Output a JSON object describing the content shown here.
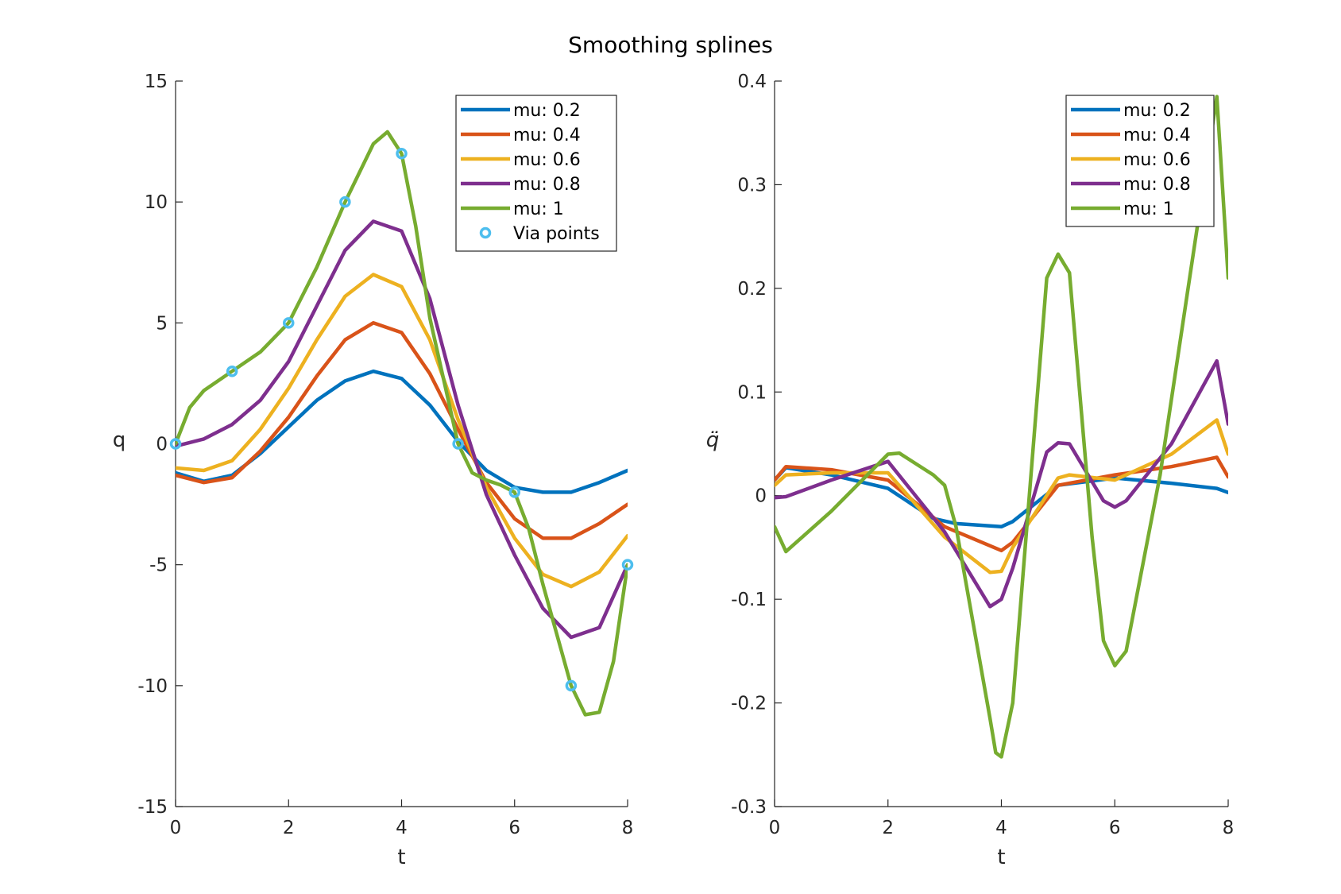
{
  "figure_title": "Smoothing splines",
  "chart_data": [
    {
      "type": "line",
      "xlabel": "t",
      "ylabel": "q",
      "xlim": [
        0,
        8
      ],
      "ylim": [
        -15,
        15
      ],
      "xticks": [
        0,
        2,
        4,
        6,
        8
      ],
      "yticks": [
        -15,
        -10,
        -5,
        0,
        5,
        10,
        15
      ],
      "legend_position": "top-right",
      "series": [
        {
          "name": "mu:  0.2",
          "color": "#0072BD",
          "x": [
            0,
            0.5,
            1,
            1.5,
            2,
            2.5,
            3,
            3.5,
            4,
            4.5,
            5,
            5.5,
            6,
            6.5,
            7,
            7.5,
            8
          ],
          "y": [
            -1.2,
            -1.55,
            -1.3,
            -0.4,
            0.7,
            1.8,
            2.6,
            3.0,
            2.7,
            1.6,
            0.1,
            -1.1,
            -1.8,
            -2.0,
            -2.0,
            -1.6,
            -1.1
          ]
        },
        {
          "name": "mu:  0.4",
          "color": "#D95319",
          "x": [
            0,
            0.5,
            1,
            1.5,
            2,
            2.5,
            3,
            3.5,
            4,
            4.5,
            5,
            5.5,
            6,
            6.5,
            7,
            7.5,
            8
          ],
          "y": [
            -1.3,
            -1.6,
            -1.4,
            -0.3,
            1.1,
            2.8,
            4.3,
            5.0,
            4.6,
            2.9,
            0.6,
            -1.6,
            -3.1,
            -3.9,
            -3.9,
            -3.3,
            -2.5
          ]
        },
        {
          "name": "mu:  0.6",
          "color": "#EDB120",
          "x": [
            0,
            0.5,
            1,
            1.5,
            2,
            2.5,
            3,
            3.5,
            4,
            4.5,
            5,
            5.5,
            6,
            6.5,
            7,
            7.5,
            8
          ],
          "y": [
            -1.0,
            -1.1,
            -0.7,
            0.6,
            2.3,
            4.3,
            6.1,
            7.0,
            6.5,
            4.3,
            1.0,
            -1.8,
            -3.9,
            -5.4,
            -5.9,
            -5.3,
            -3.8
          ]
        },
        {
          "name": "mu:  0.8",
          "color": "#7E2F8E",
          "x": [
            0,
            0.5,
            1,
            1.5,
            2,
            2.5,
            3,
            3.5,
            4,
            4.5,
            5,
            5.5,
            6,
            6.5,
            7,
            7.5,
            8
          ],
          "y": [
            -0.1,
            0.2,
            0.8,
            1.8,
            3.4,
            5.7,
            8.0,
            9.2,
            8.8,
            6.0,
            1.6,
            -2.1,
            -4.6,
            -6.8,
            -8.0,
            -7.6,
            -5.0
          ]
        },
        {
          "name": "mu:  1",
          "color": "#77AC30",
          "x": [
            0,
            0.25,
            0.5,
            1,
            1.5,
            2,
            2.5,
            3,
            3.5,
            3.75,
            4,
            4.25,
            4.5,
            5,
            5.25,
            5.5,
            5.75,
            6,
            6.25,
            6.5,
            7,
            7.25,
            7.5,
            7.75,
            8
          ],
          "y": [
            0,
            1.5,
            2.2,
            3.0,
            3.8,
            5.0,
            7.3,
            10.0,
            12.4,
            12.9,
            12.0,
            9.0,
            5.2,
            0.0,
            -1.2,
            -1.5,
            -1.7,
            -2.0,
            -3.5,
            -5.8,
            -10.0,
            -11.2,
            -11.1,
            -9.0,
            -5.0
          ]
        }
      ],
      "markers": {
        "name": "Via points",
        "color": "#4DBEEE",
        "x": [
          0,
          1,
          2,
          3,
          4,
          5,
          6,
          7,
          8
        ],
        "y": [
          0,
          3,
          5,
          10,
          12,
          0,
          -2,
          -10,
          -5
        ]
      }
    },
    {
      "type": "line",
      "xlabel": "t",
      "ylabel": "q̈",
      "xlim": [
        0,
        8
      ],
      "ylim": [
        -0.3,
        0.4
      ],
      "xticks": [
        0,
        2,
        4,
        6,
        8
      ],
      "yticks": [
        -0.3,
        -0.2,
        -0.1,
        0,
        0.1,
        0.2,
        0.3,
        0.4
      ],
      "legend_position": "top-right",
      "series": [
        {
          "name": "mu:  0.2",
          "color": "#0072BD",
          "x": [
            0,
            0.2,
            1,
            2,
            2.8,
            3.2,
            4,
            4.2,
            5,
            6,
            7,
            7.8,
            8
          ],
          "y": [
            0.015,
            0.027,
            0.02,
            0.007,
            -0.022,
            -0.027,
            -0.03,
            -0.025,
            0.01,
            0.017,
            0.012,
            0.007,
            0.003
          ]
        },
        {
          "name": "mu:  0.4",
          "color": "#D95319",
          "x": [
            0,
            0.2,
            1,
            2,
            3,
            4,
            4.2,
            5,
            6,
            7,
            7.8,
            8
          ],
          "y": [
            0.015,
            0.028,
            0.025,
            0.015,
            -0.03,
            -0.053,
            -0.045,
            0.01,
            0.02,
            0.028,
            0.037,
            0.018
          ]
        },
        {
          "name": "mu:  0.6",
          "color": "#EDB120",
          "x": [
            0,
            0.2,
            1,
            2,
            3,
            3.8,
            4,
            4.2,
            5,
            5.2,
            6,
            7,
            7.8,
            8
          ],
          "y": [
            0.01,
            0.02,
            0.022,
            0.022,
            -0.04,
            -0.074,
            -0.073,
            -0.05,
            0.017,
            0.02,
            0.015,
            0.04,
            0.073,
            0.04
          ]
        },
        {
          "name": "mu:  0.8",
          "color": "#7E2F8E",
          "x": [
            0,
            0.2,
            1,
            2,
            3,
            3.8,
            4,
            4.2,
            4.8,
            5,
            5.2,
            5.8,
            6,
            6.2,
            7,
            7.8,
            8
          ],
          "y": [
            -0.002,
            -0.001,
            0.015,
            0.033,
            -0.035,
            -0.107,
            -0.1,
            -0.07,
            0.042,
            0.051,
            0.05,
            -0.005,
            -0.011,
            -0.005,
            0.05,
            0.13,
            0.069
          ]
        },
        {
          "name": "mu:  1",
          "color": "#77AC30",
          "x": [
            0,
            0.2,
            1,
            2,
            2.2,
            2.8,
            3,
            3.2,
            3.8,
            3.9,
            4,
            4.2,
            4.8,
            5,
            5.2,
            5.6,
            5.8,
            6,
            6.2,
            6.8,
            7.8,
            8
          ],
          "y": [
            -0.03,
            -0.054,
            -0.015,
            0.04,
            0.041,
            0.02,
            0.01,
            -0.03,
            -0.215,
            -0.248,
            -0.252,
            -0.2,
            0.21,
            0.233,
            0.215,
            -0.04,
            -0.14,
            -0.164,
            -0.15,
            0.02,
            0.385,
            0.21
          ]
        }
      ]
    }
  ]
}
